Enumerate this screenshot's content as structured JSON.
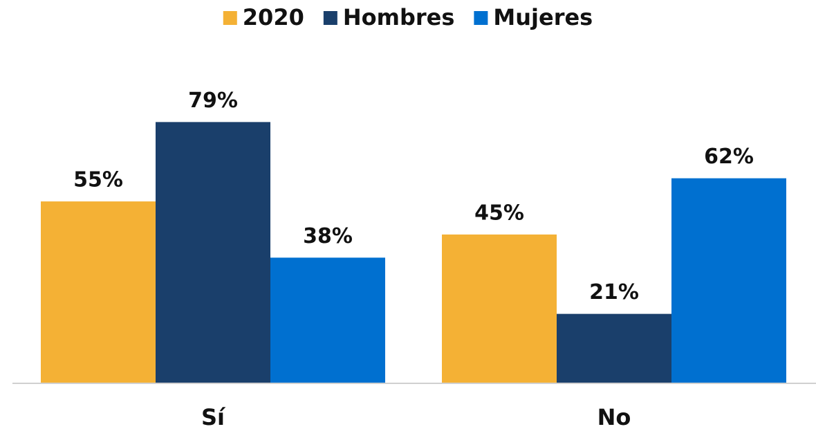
{
  "chart_data": {
    "type": "bar",
    "categories": [
      "Sí",
      "No"
    ],
    "series": [
      {
        "name": "2020",
        "color": "#f4b135",
        "values": [
          55,
          45
        ],
        "value_labels": [
          "55%",
          "45%"
        ]
      },
      {
        "name": "Hombres",
        "color": "#1a3f6b",
        "values": [
          79,
          21
        ],
        "value_labels": [
          "79%",
          "21%"
        ]
      },
      {
        "name": "Mujeres",
        "color": "#0070d0",
        "values": [
          38,
          62
        ],
        "value_labels": [
          "38%",
          "62%"
        ]
      }
    ],
    "ylim": [
      0,
      100
    ],
    "legend": "top"
  }
}
